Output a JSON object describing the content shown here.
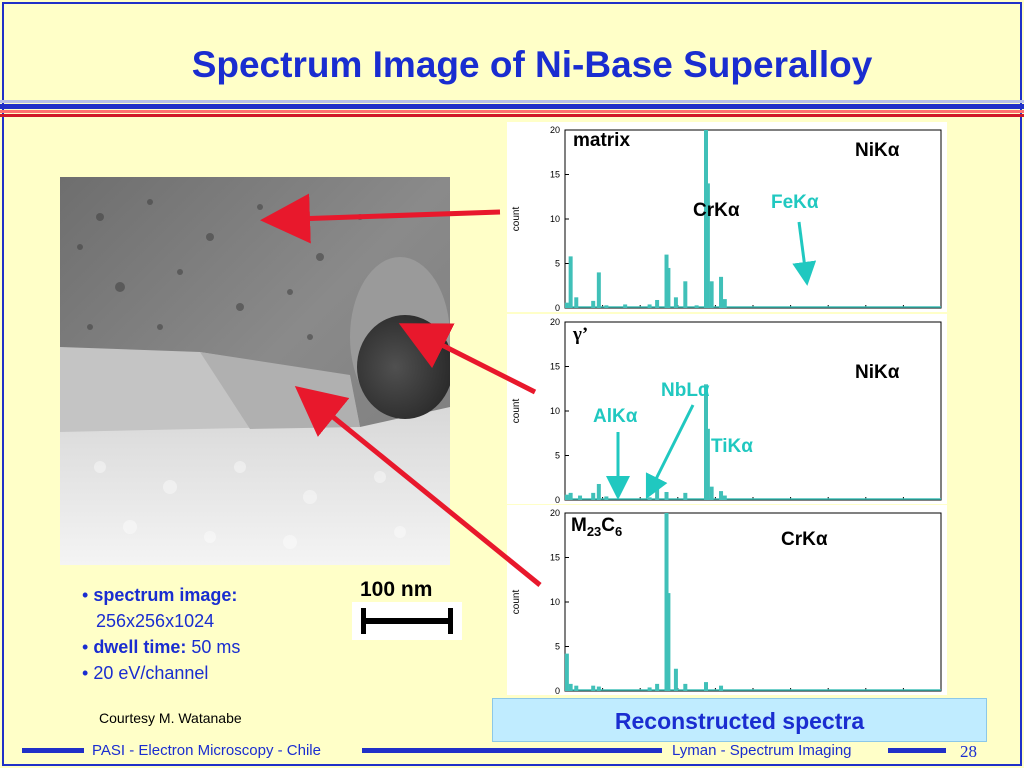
{
  "slide": {
    "title": "Spectrum Image of Ni-Base Superalloy",
    "bullets": [
      {
        "label": "spectrum image:",
        "value": "256x256x1024"
      },
      {
        "label": "dwell time:",
        "value": "50 ms"
      },
      {
        "text": "20 eV/channel"
      }
    ],
    "scale_bar_label": "100 nm",
    "courtesy": "Courtesy M. Watanabe",
    "recon_label": "Reconstructed spectra",
    "footer_left": "PASI - Electron Microscopy - Chile",
    "footer_right": "Lyman - Spectrum Imaging",
    "page_number": "28"
  },
  "colors": {
    "title_blue": "#1a2dd0",
    "spectrum": "#40c0b8",
    "callout_cyan": "#20c8c0",
    "arrow_red": "#e8182c",
    "recon_bg": "#c0ecff"
  },
  "chart_data": [
    {
      "type": "bar",
      "name": "matrix",
      "ylabel": "count",
      "ylim": [
        0,
        20
      ],
      "yticks": [
        0,
        5,
        10,
        15,
        20
      ],
      "xlim": [
        0,
        20
      ],
      "annotations": [
        {
          "text": "CrKα",
          "color": "#000000"
        },
        {
          "text": "FeKα",
          "color": "#20c8c0"
        },
        {
          "text": "NiKα",
          "color": "#000000"
        }
      ],
      "peaks": [
        [
          0.1,
          0.6
        ],
        [
          0.3,
          5.8
        ],
        [
          0.6,
          1.2
        ],
        [
          1.5,
          0.8
        ],
        [
          1.8,
          4.0
        ],
        [
          2.2,
          0.3
        ],
        [
          3.2,
          0.4
        ],
        [
          4.5,
          0.4
        ],
        [
          4.9,
          0.9
        ],
        [
          5.4,
          6.0
        ],
        [
          5.5,
          4.5
        ],
        [
          5.9,
          1.2
        ],
        [
          6.4,
          3.0
        ],
        [
          7.0,
          0.3
        ],
        [
          7.5,
          21.0
        ],
        [
          7.6,
          14.0
        ],
        [
          7.8,
          3.0
        ],
        [
          8.3,
          3.5
        ],
        [
          8.5,
          1.0
        ]
      ]
    },
    {
      "type": "bar",
      "name": "γ’",
      "ylabel": "count",
      "ylim": [
        0,
        20
      ],
      "yticks": [
        0,
        5,
        10,
        15,
        20
      ],
      "xlim": [
        0,
        20
      ],
      "annotations": [
        {
          "text": "NbLα",
          "color": "#20c8c0"
        },
        {
          "text": "AlKα",
          "color": "#20c8c0"
        },
        {
          "text": "TiKα",
          "color": "#20c8c0"
        },
        {
          "text": "NiKα",
          "color": "#000000"
        }
      ],
      "peaks": [
        [
          0.1,
          0.6
        ],
        [
          0.3,
          0.8
        ],
        [
          0.8,
          0.5
        ],
        [
          1.5,
          0.8
        ],
        [
          1.8,
          1.8
        ],
        [
          2.2,
          0.4
        ],
        [
          4.5,
          0.3
        ],
        [
          4.9,
          1.5
        ],
        [
          5.4,
          0.9
        ],
        [
          6.4,
          0.8
        ],
        [
          7.5,
          13.0
        ],
        [
          7.6,
          8.0
        ],
        [
          7.8,
          1.5
        ],
        [
          8.3,
          1.0
        ],
        [
          8.5,
          0.5
        ]
      ]
    },
    {
      "type": "bar",
      "name": "M23C6",
      "ylabel": "count",
      "ylim": [
        0,
        20
      ],
      "yticks": [
        0,
        5,
        10,
        15,
        20
      ],
      "xlim": [
        0,
        20
      ],
      "annotations": [
        {
          "text": "CrKα",
          "color": "#000000"
        }
      ],
      "peaks": [
        [
          0.1,
          4.2
        ],
        [
          0.3,
          0.8
        ],
        [
          0.6,
          0.6
        ],
        [
          1.5,
          0.6
        ],
        [
          1.8,
          0.5
        ],
        [
          4.5,
          0.4
        ],
        [
          4.9,
          0.8
        ],
        [
          5.4,
          20.0
        ],
        [
          5.5,
          11.0
        ],
        [
          5.9,
          2.5
        ],
        [
          6.4,
          0.8
        ],
        [
          7.5,
          1.0
        ],
        [
          8.3,
          0.6
        ]
      ]
    }
  ]
}
